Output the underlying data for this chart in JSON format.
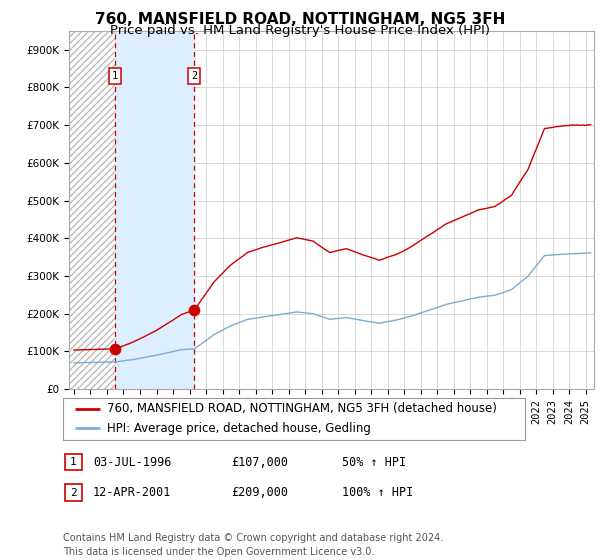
{
  "title": "760, MANSFIELD ROAD, NOTTINGHAM, NG5 3FH",
  "subtitle": "Price paid vs. HM Land Registry's House Price Index (HPI)",
  "ylabel_ticks": [
    "£0",
    "£100K",
    "£200K",
    "£300K",
    "£400K",
    "£500K",
    "£600K",
    "£700K",
    "£800K",
    "£900K"
  ],
  "ytick_vals": [
    0,
    100000,
    200000,
    300000,
    400000,
    500000,
    600000,
    700000,
    800000,
    900000
  ],
  "ylim": [
    0,
    950000
  ],
  "xlim_start": 1993.7,
  "xlim_end": 2025.5,
  "red_line_color": "#cc0000",
  "blue_line_color": "#7aadd4",
  "bg_shaded_color": "#ddeeff",
  "grid_color": "#cccccc",
  "point1_x": 1996.5,
  "point1_y": 107000,
  "point2_x": 2001.27,
  "point2_y": 209000,
  "vline1_x": 1996.5,
  "vline2_x": 2001.27,
  "legend_line1": "760, MANSFIELD ROAD, NOTTINGHAM, NG5 3FH (detached house)",
  "legend_line2": "HPI: Average price, detached house, Gedling",
  "table_row1": [
    "1",
    "03-JUL-1996",
    "£107,000",
    "50% ↑ HPI"
  ],
  "table_row2": [
    "2",
    "12-APR-2001",
    "£209,000",
    "100% ↑ HPI"
  ],
  "footer": "Contains HM Land Registry data © Crown copyright and database right 2024.\nThis data is licensed under the Open Government Licence v3.0.",
  "title_fontsize": 11,
  "subtitle_fontsize": 9.5,
  "tick_fontsize": 7.5,
  "legend_fontsize": 8.5,
  "table_fontsize": 8.5,
  "footer_fontsize": 7.0
}
